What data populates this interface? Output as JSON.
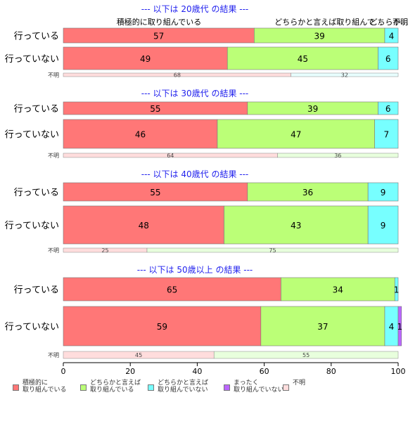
{
  "chart_data": {
    "type": "bar",
    "orientation": "horizontal",
    "stacked": true,
    "xlim": [
      0,
      100
    ],
    "xticks": [
      0,
      20,
      40,
      60,
      80,
      100
    ],
    "column_headers": [
      "積極的に取り組んでいる",
      "どちらかと言えば取り組んで…",
      "どちらか…",
      "不明"
    ],
    "legend_position": "bottom",
    "colors": {
      "s1": "#ff7777",
      "s2": "#bbff77",
      "s3": "#77ffff",
      "s4": "#bb66ff",
      "s5": "#ffdddd",
      "title": "#2222ee",
      "missing_a": "#ffdddd",
      "missing_b": "#e8ffdd",
      "missing_c": "#e8ffff"
    },
    "series": [
      {
        "name": "積極的に\n取り組んでいる",
        "color": "#ff7777"
      },
      {
        "name": "どちらかと言えば\n取り組んでいる",
        "color": "#bbff77"
      },
      {
        "name": "どちらかと言えば\n取り組んでいない",
        "color": "#77ffff"
      },
      {
        "name": "まったく\n取り組んでいない",
        "color": "#bb66ff"
      },
      {
        "name": "不明",
        "color": "#ffdddd"
      }
    ],
    "panels": [
      {
        "title": "--- 以下は 20歳代 の結果 ---",
        "rows": [
          {
            "label": "行っている",
            "values": [
              57,
              39,
              4,
              0
            ]
          },
          {
            "label": "行っていない",
            "values": [
              49,
              45,
              6,
              0
            ]
          }
        ],
        "missing": {
          "label": "不明",
          "values": [
            68,
            32
          ],
          "colors": [
            "#ffdddd",
            "#e8ffff"
          ]
        }
      },
      {
        "title": "--- 以下は 30歳代 の結果 ---",
        "rows": [
          {
            "label": "行っている",
            "values": [
              55,
              39,
              6,
              0
            ]
          },
          {
            "label": "行っていない",
            "values": [
              46,
              47,
              7,
              0
            ]
          }
        ],
        "missing": {
          "label": "不明",
          "values": [
            64,
            36
          ],
          "colors": [
            "#ffdddd",
            "#e8ffdd"
          ]
        }
      },
      {
        "title": "--- 以下は 40歳代 の結果 ---",
        "rows": [
          {
            "label": "行っている",
            "values": [
              55,
              36,
              9,
              0
            ]
          },
          {
            "label": "行っていない",
            "values": [
              48,
              43,
              9,
              0
            ]
          }
        ],
        "missing": {
          "label": "不明",
          "values": [
            25,
            75
          ],
          "colors": [
            "#ffdddd",
            "#e8ffdd"
          ]
        }
      },
      {
        "title": "--- 以下は 50歳以上 の結果 ---",
        "rows": [
          {
            "label": "行っている",
            "values": [
              65,
              34,
              1,
              0
            ]
          },
          {
            "label": "行っていない",
            "values": [
              59,
              37,
              4,
              1
            ]
          }
        ],
        "missing": {
          "label": "不明",
          "values": [
            45,
            55
          ],
          "colors": [
            "#ffdddd",
            "#e8ffdd"
          ]
        }
      }
    ]
  }
}
